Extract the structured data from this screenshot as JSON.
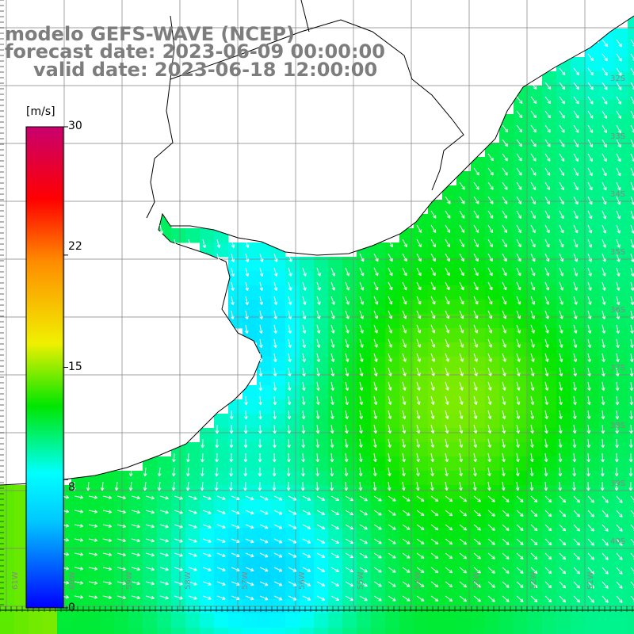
{
  "title": {
    "line1": "modelo GEFS-WAVE (NCEP)",
    "line2": "forecast date: 2023-06-09 00:00:00",
    "line3": "valid date: 2023-06-18 12:00:00"
  },
  "colorbar": {
    "units": "[m/s]",
    "ticks": [
      "30",
      "22",
      "15",
      "8",
      "0"
    ],
    "tick_values": [
      30,
      22,
      15,
      8,
      0
    ],
    "min": 0,
    "max": 30,
    "colors": [
      "#0000ff",
      "#00c8ff",
      "#00ffff",
      "#00e600",
      "#f0f000",
      "#ff8c00",
      "#ff0000",
      "#c8006e"
    ]
  },
  "map": {
    "land_color": "#ffffff",
    "grid_color": "#808080",
    "coast_color": "#000000",
    "arrow_color": "#ffffff",
    "lat_labels": [
      "32S",
      "33S",
      "34S",
      "35S",
      "36S",
      "37S",
      "38S",
      "39S",
      "40S"
    ],
    "lon_labels": [
      "61W",
      "60W",
      "59W",
      "58W",
      "57W",
      "56W",
      "55W",
      "54W",
      "53W",
      "52W",
      "51W"
    ],
    "lat_range": [
      -41,
      -30
    ],
    "lon_range": [
      -62,
      -51
    ]
  }
}
